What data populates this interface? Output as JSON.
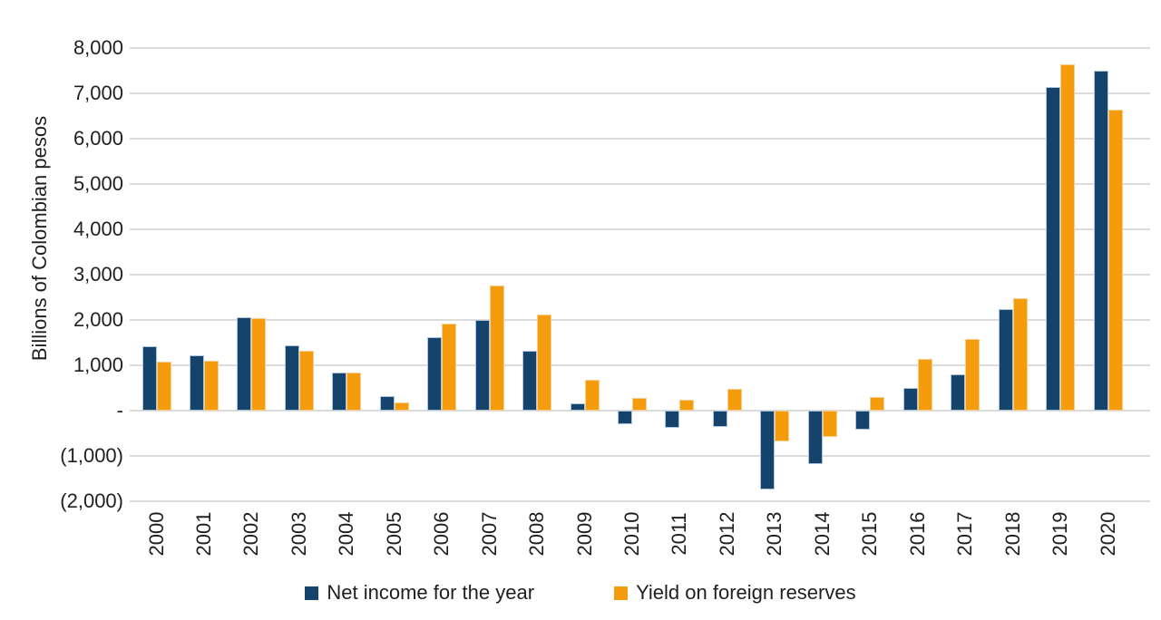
{
  "chart_data": {
    "type": "bar",
    "title": "",
    "ylabel": "Billions of Colombian pesos",
    "xlabel": "",
    "categories": [
      "2000",
      "2001",
      "2002",
      "2003",
      "2004",
      "2005",
      "2006",
      "2007",
      "2008",
      "2009",
      "2010",
      "2011",
      "2012",
      "2013",
      "2014",
      "2015",
      "2016",
      "2017",
      "2018",
      "2019",
      "2020"
    ],
    "series": [
      {
        "name": "Net income for the year",
        "color": "#14436B",
        "border_color": "#AFC3DB",
        "values": [
          1430,
          1230,
          2070,
          1450,
          840,
          330,
          1630,
          2000,
          1330,
          165,
          -290,
          -370,
          -350,
          -1740,
          -1180,
          -420,
          510,
          810,
          2250,
          7150,
          7500
        ]
      },
      {
        "name": "Yield on foreign reserves",
        "color": "#F59C0C",
        "border_color": "#F8CD8C",
        "values": [
          1080,
          1100,
          2040,
          1330,
          850,
          180,
          1930,
          2760,
          2120,
          690,
          275,
          240,
          475,
          -680,
          -570,
          310,
          1140,
          1590,
          2490,
          7650,
          6640
        ]
      }
    ],
    "ylim": [
      -2000,
      8000
    ],
    "y_ticks": [
      {
        "value": 8000,
        "label": "8,000"
      },
      {
        "value": 7000,
        "label": "7,000"
      },
      {
        "value": 6000,
        "label": "6,000"
      },
      {
        "value": 5000,
        "label": "5,000"
      },
      {
        "value": 4000,
        "label": "4,000"
      },
      {
        "value": 3000,
        "label": "3,000"
      },
      {
        "value": 2000,
        "label": "2,000"
      },
      {
        "value": 1000,
        "label": "1,000"
      },
      {
        "value": 0,
        "label": "-"
      },
      {
        "value": -1000,
        "label": "(1,000)"
      },
      {
        "value": -2000,
        "label": "(2,000)"
      }
    ],
    "grid": "horizontal",
    "legend_position": "bottom"
  },
  "colors": {
    "background": "#FFFFFF",
    "gridline": "#DCDCDC",
    "text": "#1F1F1F",
    "net_income_blue": "#14436B",
    "yield_orange": "#F59C0C"
  }
}
